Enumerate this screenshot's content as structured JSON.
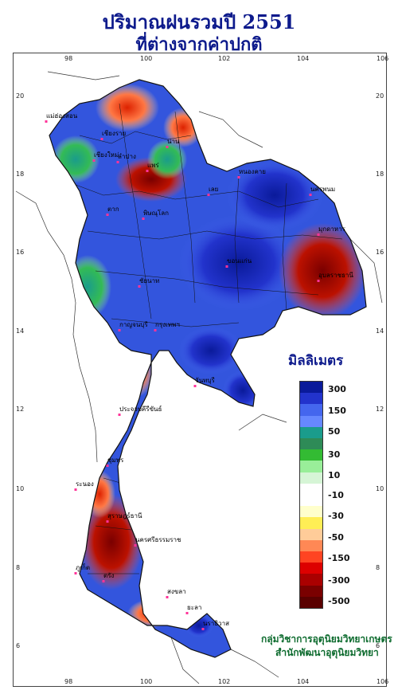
{
  "title": {
    "line1": "ปริมาณฝนรวมปี  2551",
    "line2": "ที่ต่างจากค่าปกติ"
  },
  "axes": {
    "lon_ticks": [
      "98",
      "100",
      "102",
      "104",
      "106"
    ],
    "lat_ticks": [
      "20",
      "18",
      "16",
      "14",
      "12",
      "10",
      "8",
      "6"
    ]
  },
  "legend": {
    "title": "มิลลิเมตร",
    "labels": [
      "300",
      "150",
      "50",
      "30",
      "10",
      "-10",
      "-30",
      "-50",
      "-150",
      "-300",
      "-500"
    ],
    "colors": [
      "#0a1a9a",
      "#2233cc",
      "#4466ee",
      "#6688ff",
      "#1a9c8c",
      "#2e8b57",
      "#33bb33",
      "#99ee99",
      "#d6f5d6",
      "#ffffff",
      "#ffffff",
      "#ffffcc",
      "#ffee55",
      "#ffcc99",
      "#ff8855",
      "#ff4422",
      "#dd0000",
      "#aa0000",
      "#7a0000",
      "#5a0000"
    ]
  },
  "places": [
    "เชียงราย",
    "แม่ฮ่องสอน",
    "เชียงใหม่",
    "น่าน",
    "ลำปาง",
    "แพร่",
    "เลย",
    "หนองคาย",
    "นครพนม",
    "มุกดาหาร",
    "ตาก",
    "พิษณุโลก",
    "ขอนแก่น",
    "อุบลราชธานี",
    "ชัยนาท",
    "กาญจนบุรี",
    "กรุงเทพฯ",
    "จันทบุรี",
    "ประจวบคีรีขันธ์",
    "ชุมพร",
    "ระนอง",
    "สุราษฎร์ธานี",
    "ภูเก็ต",
    "นครศรีธรรมราช",
    "สงขลา",
    "นราธิวาส",
    "ยะลา",
    "ตรัง"
  ],
  "credit": {
    "line1": "กลุ่มวิชาการอุตุนิยมวิทยาเกษตร",
    "line2": "สำนักพัฒนาอุตุนิยมวิทยา"
  }
}
